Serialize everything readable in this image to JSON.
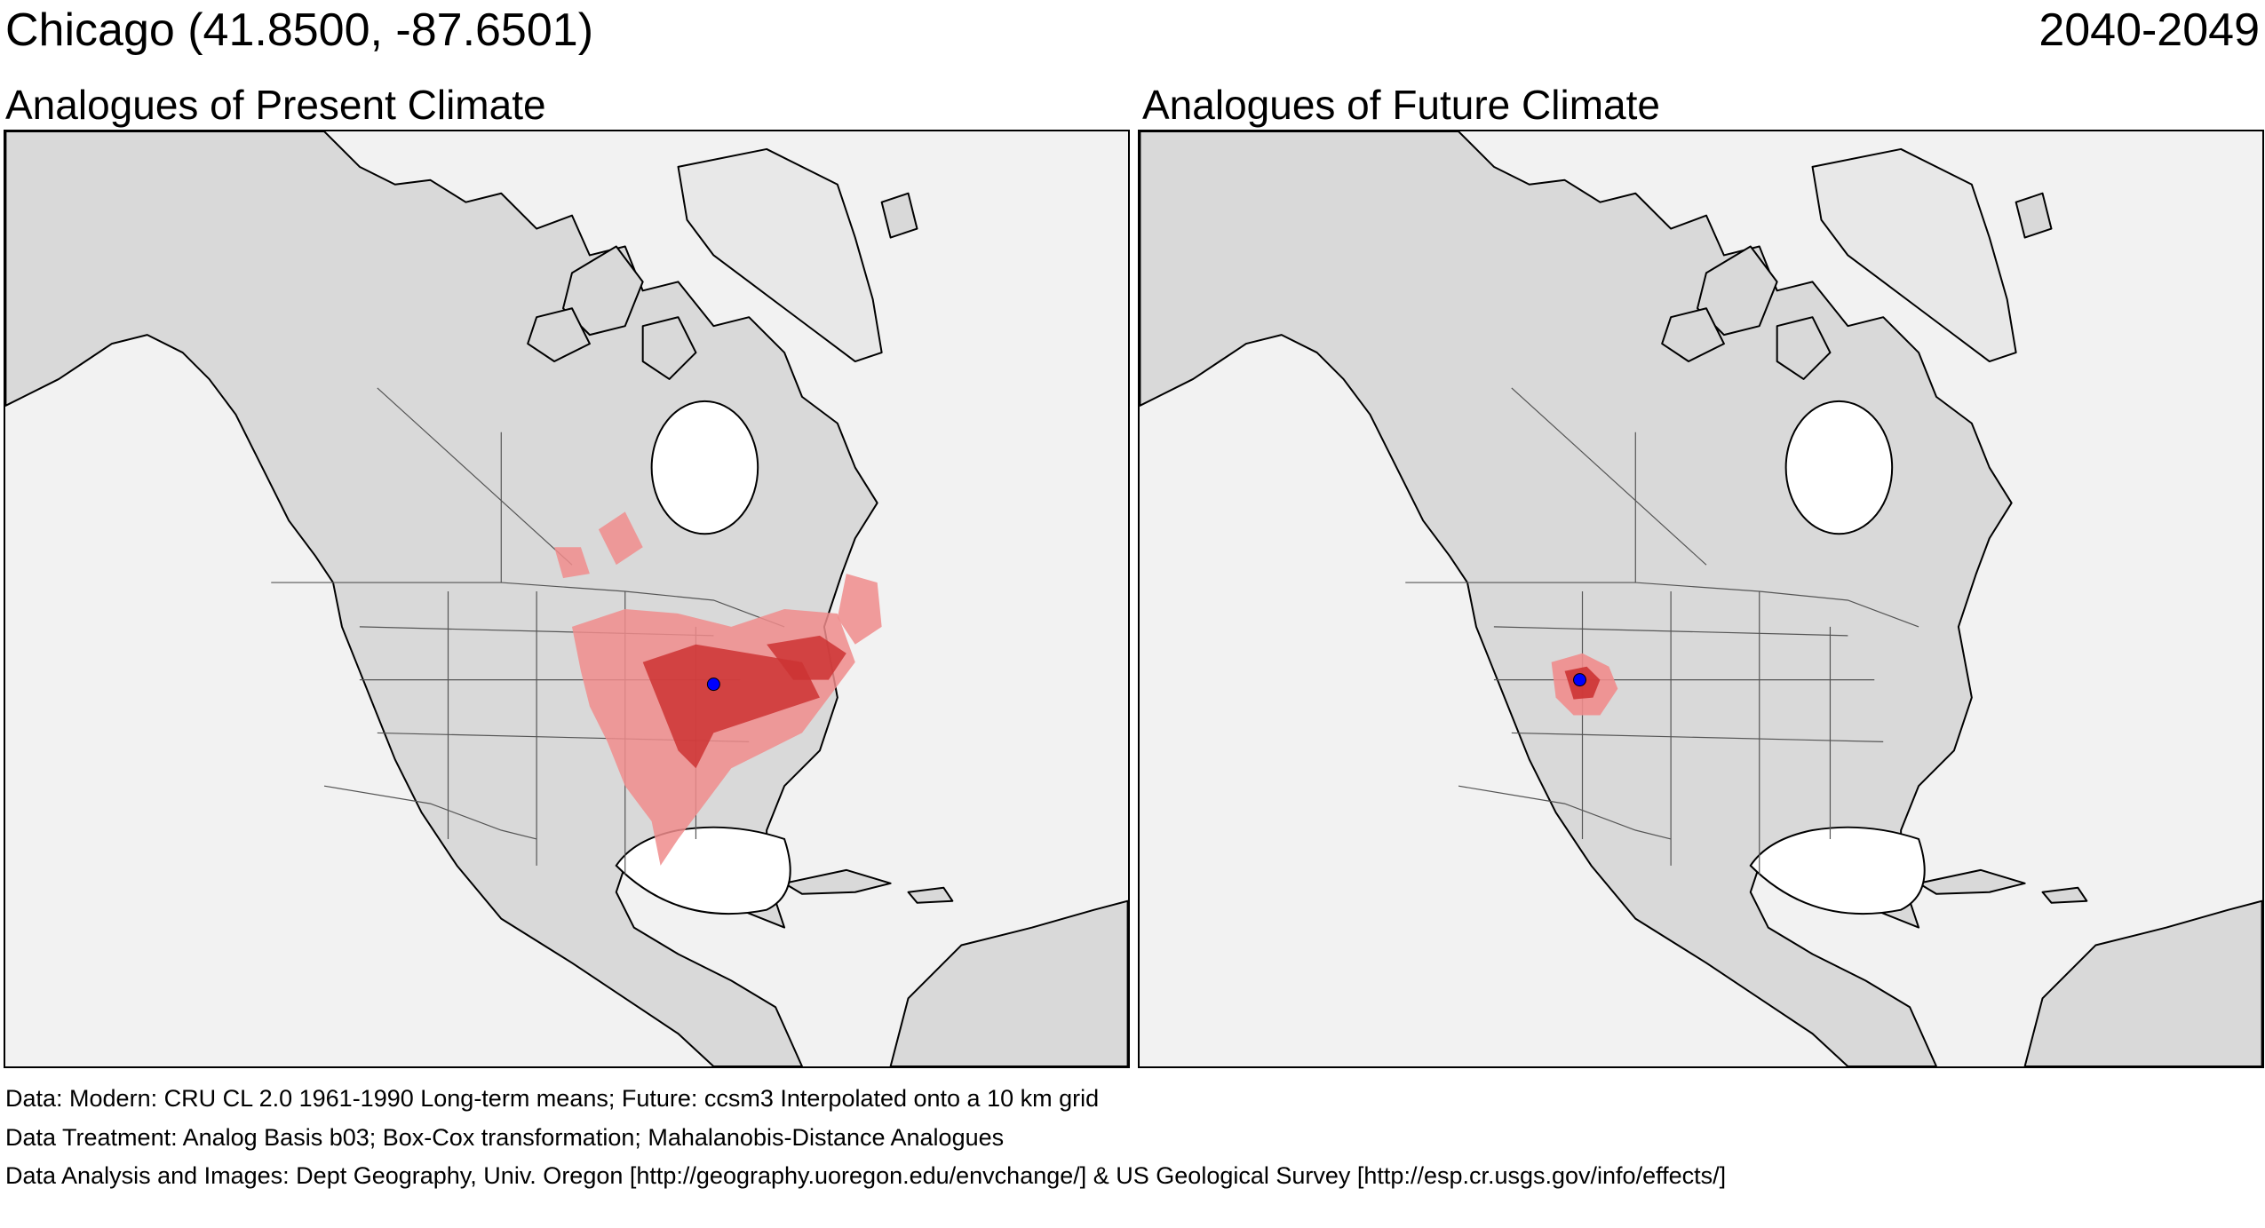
{
  "header": {
    "location": "Chicago  (41.8500, -87.6501)",
    "period": "2040-2049"
  },
  "panels": [
    {
      "title": "Analogues of Present Climate"
    },
    {
      "title": "Analogues of Future Climate"
    }
  ],
  "legend_colors": {
    "land": "#d9d9d9",
    "ocean": "#f2f2f2",
    "analog_light": "#f08c8c",
    "analog_dark": "#cc3333",
    "site_marker": "#0000ff"
  },
  "credits": {
    "data": "Data:  Modern: CRU CL 2.0 1961-1990 Long-term means; Future: ccsm3 Interpolated onto a 10 km grid",
    "treatment": "Data Treatment:  Analog Basis b03; Box-Cox transformation; Mahalanobis-Distance Analogues",
    "analysis": "Data Analysis and Images:  Dept Geography, Univ. Oregon [http://geography.uoregon.edu/envchange/] & US Geological Survey [http://esp.cr.usgs.gov/info/effects/]"
  }
}
